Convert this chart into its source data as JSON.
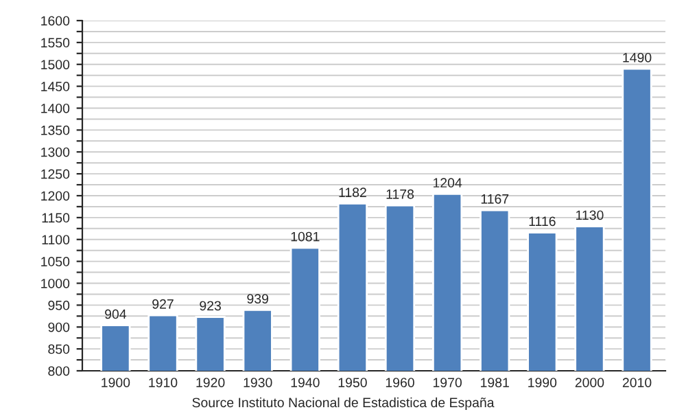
{
  "chart_data": {
    "type": "bar",
    "categories": [
      "1900",
      "1910",
      "1920",
      "1930",
      "1940",
      "1950",
      "1960",
      "1970",
      "1981",
      "1990",
      "2000",
      "2010"
    ],
    "values": [
      904,
      927,
      923,
      939,
      1081,
      1182,
      1178,
      1204,
      1167,
      1116,
      1130,
      1490
    ],
    "color": "#4f81bd",
    "data_labels": true,
    "ylim": [
      800,
      1600
    ],
    "yticks": [
      800,
      {
        "value": 825,
        "label": null
      },
      850,
      {
        "value": 875,
        "label": null
      },
      900,
      {
        "value": 925,
        "label": null
      },
      950,
      {
        "value": 975,
        "label": null
      },
      1000,
      {
        "value": 1025,
        "label": null
      },
      1050,
      {
        "value": 1075,
        "label": null
      },
      1100,
      {
        "value": 1125,
        "label": null
      },
      1150,
      {
        "value": 1175,
        "label": null
      },
      1200,
      {
        "value": 1225,
        "label": null
      },
      1250,
      {
        "value": 1275,
        "label": null
      },
      1300,
      {
        "value": 1325,
        "label": null
      },
      1350,
      {
        "value": 1375,
        "label": null
      },
      1400,
      {
        "value": 1425,
        "label": null
      },
      1450,
      {
        "value": 1475,
        "label": null
      },
      1500,
      {
        "value": 1525,
        "label": null
      },
      1550,
      {
        "value": 1575,
        "label": null
      },
      1600
    ],
    "grid": "y",
    "annotations": [
      "Source Instituto Nacional de Estadistica de España"
    ]
  }
}
